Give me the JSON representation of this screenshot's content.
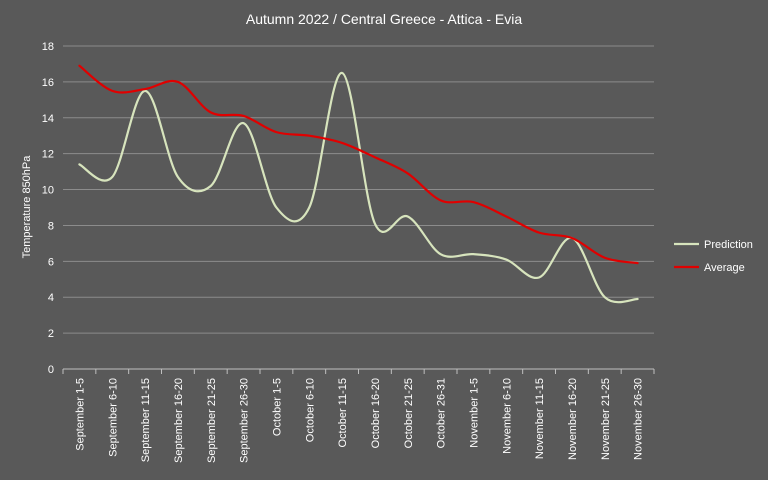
{
  "chart_data": {
    "type": "line",
    "title": "Autumn  2022 / Central Greece - Attica - Evia",
    "xlabel": "",
    "ylabel": "Temperature 850hPa",
    "ylim": [
      0,
      18
    ],
    "yticks": [
      0,
      2,
      4,
      6,
      8,
      10,
      12,
      14,
      16,
      18
    ],
    "grid": true,
    "legend_position": "right",
    "categories": [
      "September 1-5",
      "September 6-10",
      "September 11-15",
      "September 16-20",
      "September 21-25",
      "September 26-30",
      "October 1-5",
      "October 6-10",
      "October 11-15",
      "October 16-20",
      "October 21-25",
      "October 26-31",
      "November 1-5",
      "November 6-10",
      "November 11-15",
      "November 16-20",
      "November 21-25",
      "November 26-30"
    ],
    "series": [
      {
        "name": "Prediction",
        "color": "#d7e4bd",
        "values": [
          11.4,
          10.7,
          15.5,
          10.7,
          10.2,
          13.7,
          9.0,
          9.0,
          16.5,
          8.1,
          8.5,
          6.4,
          6.4,
          6.1,
          5.1,
          7.3,
          4.0,
          3.9
        ]
      },
      {
        "name": "Average",
        "color": "#e00000",
        "values": [
          16.9,
          15.5,
          15.6,
          16.0,
          14.3,
          14.1,
          13.2,
          13.0,
          12.6,
          11.8,
          10.9,
          9.4,
          9.3,
          8.5,
          7.6,
          7.3,
          6.2,
          5.9
        ]
      }
    ]
  }
}
